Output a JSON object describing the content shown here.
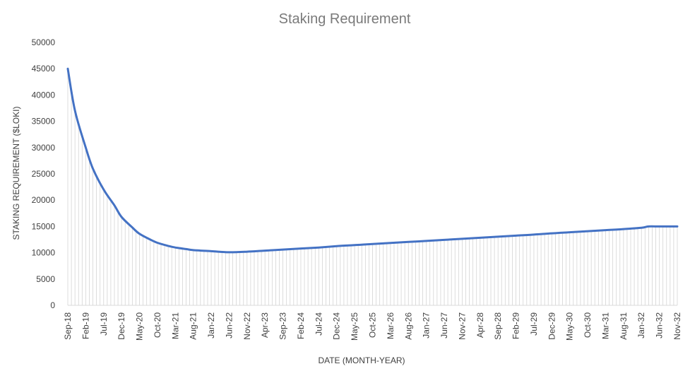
{
  "chart_data": {
    "type": "line",
    "title": "Staking Requirement",
    "xlabel": "DATE (MONTH-YEAR)",
    "ylabel": "STAKING REQUIREMENT ($LOKI)",
    "ylim": [
      0,
      50000
    ],
    "yticks": [
      0,
      5000,
      10000,
      15000,
      20000,
      25000,
      30000,
      35000,
      40000,
      45000,
      50000
    ],
    "grid": false,
    "legend": "none",
    "x_start": "Sep-18",
    "x_end": "Nov-32",
    "xtick_labels": [
      "Sep-18",
      "Feb-19",
      "Jul-19",
      "Dec-19",
      "May-20",
      "Oct-20",
      "Mar-21",
      "Aug-21",
      "Jan-22",
      "Jun-22",
      "Nov-22",
      "Apr-23",
      "Sep-23",
      "Feb-24",
      "Jul-24",
      "Dec-24",
      "May-25",
      "Oct-25",
      "Mar-26",
      "Aug-26",
      "Jan-27",
      "Jun-27",
      "Nov-27",
      "Apr-28",
      "Sep-28",
      "Feb-29",
      "Jul-29",
      "Dec-29",
      "May-30",
      "Oct-30",
      "Mar-31",
      "Aug-31",
      "Jan-32",
      "Jun-32",
      "Nov-32"
    ],
    "series": [
      {
        "color": "#4472c4",
        "points": [
          {
            "x": "Sep-18",
            "y": 45000
          },
          {
            "x": "Nov-18",
            "y": 37000
          },
          {
            "x": "Feb-19",
            "y": 30000
          },
          {
            "x": "Apr-19",
            "y": 26000
          },
          {
            "x": "Jul-19",
            "y": 22000
          },
          {
            "x": "Oct-19",
            "y": 19000
          },
          {
            "x": "Dec-19",
            "y": 16800
          },
          {
            "x": "Mar-20",
            "y": 14800
          },
          {
            "x": "May-20",
            "y": 13600
          },
          {
            "x": "Aug-20",
            "y": 12500
          },
          {
            "x": "Oct-20",
            "y": 11900
          },
          {
            "x": "Jan-21",
            "y": 11300
          },
          {
            "x": "Mar-21",
            "y": 11000
          },
          {
            "x": "Jun-21",
            "y": 10700
          },
          {
            "x": "Aug-21",
            "y": 10500
          },
          {
            "x": "Jan-22",
            "y": 10300
          },
          {
            "x": "Jun-22",
            "y": 10100
          },
          {
            "x": "Nov-22",
            "y": 10200
          },
          {
            "x": "Apr-23",
            "y": 10400
          },
          {
            "x": "Sep-23",
            "y": 10600
          },
          {
            "x": "Feb-24",
            "y": 10800
          },
          {
            "x": "Jul-24",
            "y": 11000
          },
          {
            "x": "Dec-24",
            "y": 11250
          },
          {
            "x": "May-25",
            "y": 11450
          },
          {
            "x": "Oct-25",
            "y": 11650
          },
          {
            "x": "Mar-26",
            "y": 11850
          },
          {
            "x": "Aug-26",
            "y": 12050
          },
          {
            "x": "Jan-27",
            "y": 12250
          },
          {
            "x": "Jun-27",
            "y": 12450
          },
          {
            "x": "Nov-27",
            "y": 12650
          },
          {
            "x": "Apr-28",
            "y": 12850
          },
          {
            "x": "Sep-28",
            "y": 13050
          },
          {
            "x": "Feb-29",
            "y": 13250
          },
          {
            "x": "Jul-29",
            "y": 13450
          },
          {
            "x": "Dec-29",
            "y": 13700
          },
          {
            "x": "May-30",
            "y": 13900
          },
          {
            "x": "Oct-30",
            "y": 14100
          },
          {
            "x": "Mar-31",
            "y": 14300
          },
          {
            "x": "Aug-31",
            "y": 14500
          },
          {
            "x": "Jan-32",
            "y": 14750
          },
          {
            "x": "Mar-32",
            "y": 15000
          },
          {
            "x": "Jun-32",
            "y": 15000
          },
          {
            "x": "Nov-32",
            "y": 15000
          }
        ]
      }
    ]
  }
}
